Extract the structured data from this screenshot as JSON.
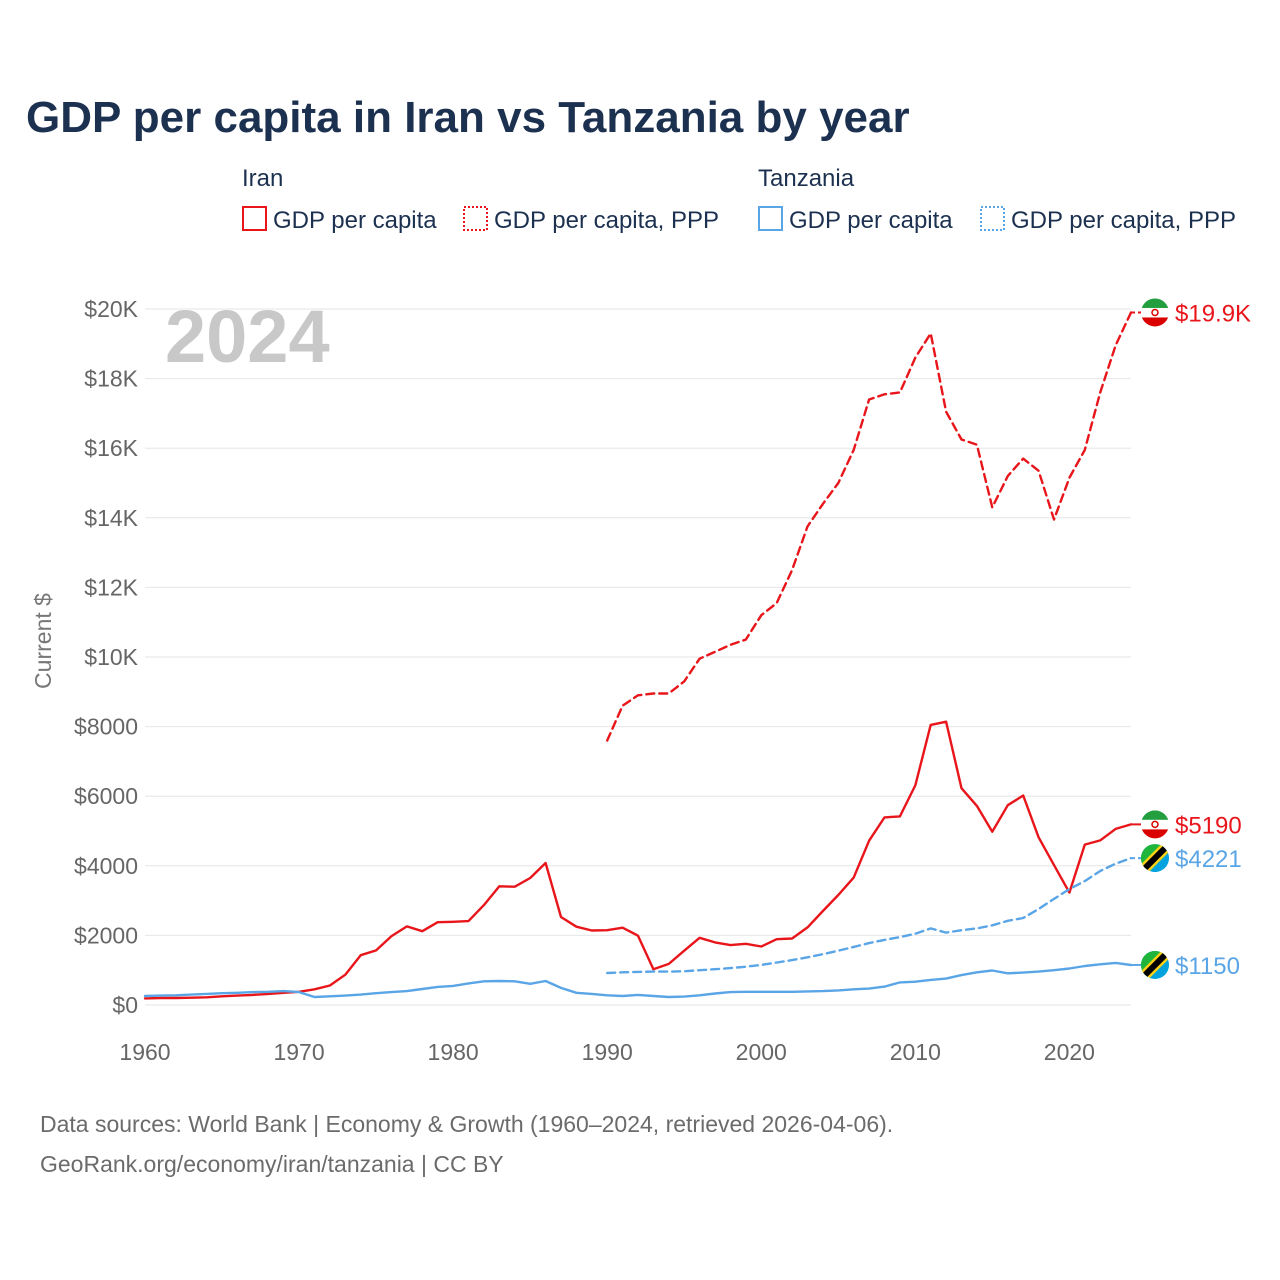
{
  "title": "GDP per capita in Iran vs Tanzania by year",
  "watermark_year": "2024",
  "footer": {
    "line1": "Data sources: World Bank | Economy & Growth (1960–2024, retrieved 2026-04-06).",
    "line2": "GeoRank.org/economy/iran/tanzania | CC BY"
  },
  "colors": {
    "iran": "#e8161b",
    "tanzania": "#5aa5e6"
  },
  "chart_data": {
    "type": "line",
    "title": "GDP per capita in Iran vs Tanzania by year",
    "xlabel": "",
    "ylabel": "Current $",
    "xlim": [
      1960,
      2024
    ],
    "ylim": [
      0,
      20000
    ],
    "x_ticks": [
      1960,
      1970,
      1980,
      1990,
      2000,
      2010,
      2020
    ],
    "x_tick_labels": [
      "1960",
      "1970",
      "1980",
      "1990",
      "2000",
      "2010",
      "2020"
    ],
    "y_ticks": [
      0,
      2000,
      4000,
      6000,
      8000,
      10000,
      12000,
      14000,
      16000,
      18000,
      20000
    ],
    "y_tick_labels": [
      "$0",
      "$2000",
      "$4000",
      "$6000",
      "$8000",
      "$10K",
      "$12K",
      "$14K",
      "$16K",
      "$18K",
      "$20K"
    ],
    "grid": true,
    "legend": {
      "placement": "top",
      "groups": [
        {
          "name": "Iran",
          "items": [
            "GDP per capita",
            "GDP per capita, PPP"
          ]
        },
        {
          "name": "Tanzania",
          "items": [
            "GDP per capita",
            "GDP per capita, PPP"
          ]
        }
      ]
    },
    "series": [
      {
        "name": "Iran GDP per capita",
        "country": "iran",
        "style": "solid",
        "end_label": "$5190",
        "x_start": 1960,
        "values": [
          190,
          200,
          200,
          210,
          220,
          250,
          270,
          290,
          320,
          350,
          380,
          450,
          560,
          870,
          1430,
          1570,
          1980,
          2260,
          2120,
          2380,
          2390,
          2410,
          2870,
          3410,
          3400,
          3650,
          4080,
          2530,
          2250,
          2140,
          2150,
          2220,
          1990,
          1030,
          1180,
          1560,
          1930,
          1800,
          1720,
          1760,
          1680,
          1890,
          1910,
          2230,
          2700,
          3160,
          3660,
          4720,
          5390,
          5420,
          6310,
          8050,
          8140,
          6230,
          5720,
          4980,
          5740,
          6020,
          4820,
          4020,
          3230,
          4610,
          4730,
          5060,
          5190
        ]
      },
      {
        "name": "Iran GDP per capita, PPP",
        "country": "iran",
        "style": "dashed",
        "end_label": "$19.9K",
        "x_start": 1990,
        "values": [
          7600,
          8600,
          8900,
          8950,
          8950,
          9300,
          9950,
          10150,
          10350,
          10500,
          11200,
          11550,
          12500,
          13750,
          14400,
          15000,
          15950,
          17400,
          17550,
          17600,
          18600,
          19300,
          17050,
          16250,
          16100,
          14300,
          15200,
          15700,
          15350,
          13950,
          15150,
          15950,
          17600,
          18950,
          19900
        ]
      },
      {
        "name": "Tanzania GDP per capita",
        "country": "tanzania",
        "style": "solid",
        "end_label": "$1150",
        "x_start": 1960,
        "values": [
          260,
          270,
          280,
          300,
          320,
          340,
          350,
          370,
          380,
          400,
          370,
          230,
          250,
          270,
          300,
          340,
          370,
          400,
          460,
          520,
          550,
          620,
          680,
          690,
          680,
          610,
          690,
          490,
          350,
          320,
          280,
          260,
          290,
          260,
          230,
          240,
          280,
          330,
          370,
          380,
          380,
          380,
          380,
          390,
          400,
          420,
          450,
          470,
          530,
          650,
          670,
          720,
          760,
          860,
          940,
          990,
          910,
          930,
          960,
          1000,
          1050,
          1120,
          1170,
          1210,
          1150
        ]
      },
      {
        "name": "Tanzania GDP per capita, PPP",
        "country": "tanzania",
        "style": "dashed",
        "end_label": "$4221",
        "x_start": 1990,
        "values": [
          920,
          940,
          950,
          960,
          960,
          970,
          1000,
          1030,
          1060,
          1100,
          1150,
          1220,
          1290,
          1370,
          1460,
          1560,
          1670,
          1780,
          1870,
          1950,
          2050,
          2200,
          2080,
          2150,
          2200,
          2290,
          2420,
          2500,
          2760,
          3050,
          3330,
          3560,
          3850,
          4060,
          4221
        ]
      }
    ]
  }
}
